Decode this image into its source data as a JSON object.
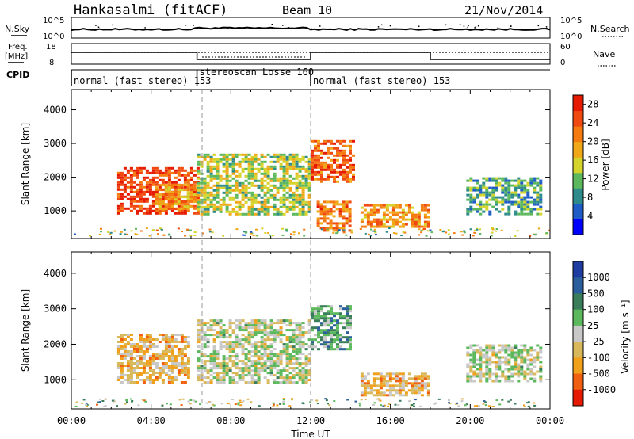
{
  "header": {
    "station": "Hankasalmi (fitACF)",
    "beam": "Beam 10",
    "date": "21/Nov/2014"
  },
  "ancillary": {
    "nsky_label": "N.Sky",
    "nsearch_label": "N.Search",
    "noise_ticks": [
      "10^5",
      "10^0"
    ],
    "freq_label_line1": "Freq.",
    "freq_label_line2": "[MHz]",
    "freq_ticks": [
      "18",
      "8"
    ],
    "nave_ticks": [
      "60",
      "0"
    ],
    "nave_label": "Nave",
    "cpid_label": "CPID",
    "cpid_segments": [
      {
        "label": "normal (fast stereo) 153",
        "start_h": 0,
        "end_h": 6.3
      },
      {
        "label": "stereoscan Losse 160",
        "start_h": 6.3,
        "end_h": 12
      },
      {
        "label": "normal (fast stereo) 153",
        "start_h": 12,
        "end_h": 24
      }
    ]
  },
  "axes": {
    "x_label": "Time UT",
    "x_ticks": [
      "00:00",
      "04:00",
      "08:00",
      "12:00",
      "16:00",
      "20:00",
      "00:00"
    ],
    "y_label": "Slant Range [km]",
    "y_ticks": [
      "1000",
      "2000",
      "3000",
      "4000"
    ]
  },
  "colorbars": {
    "power": {
      "label": "Power [dB]",
      "ticks": [
        "4",
        "8",
        "12",
        "16",
        "20",
        "24",
        "28"
      ],
      "colors": [
        "#0000ff",
        "#1f5cc8",
        "#2e8b8b",
        "#5cb85c",
        "#d4d42c",
        "#f0a818",
        "#f57a10",
        "#f04a10",
        "#e61a00"
      ]
    },
    "velocity": {
      "label": "Velocity [m s⁻¹]",
      "ticks": [
        "1000",
        "500",
        "100",
        "25",
        "-25",
        "-100",
        "-500",
        "-1000"
      ],
      "colors": [
        "#1f3ca0",
        "#2a5e9c",
        "#3a7d5a",
        "#5cb85c",
        "#c8c8c8",
        "#d8b85a",
        "#f0a01a",
        "#f06010",
        "#e61a00"
      ]
    }
  },
  "chart_data": [
    {
      "type": "heatmap",
      "title": "Power",
      "xlabel": "Time UT",
      "ylabel": "Slant Range [km]",
      "xlim": [
        0,
        24
      ],
      "ylim": [
        180,
        4600
      ],
      "zlabel": "Power [dB]",
      "zlim": [
        0,
        30
      ],
      "regions": [
        {
          "t0": 2.3,
          "t1": 6.4,
          "r0": 900,
          "r1": 2300,
          "z": 26
        },
        {
          "t0": 4.2,
          "t1": 6.2,
          "r0": 1000,
          "r1": 1800,
          "z": 20
        },
        {
          "t0": 6.3,
          "t1": 12.0,
          "r0": 900,
          "r1": 2700,
          "z": 14
        },
        {
          "t0": 12.0,
          "t1": 14.2,
          "r0": 1800,
          "r1": 3100,
          "z": 24
        },
        {
          "t0": 12.3,
          "t1": 14.0,
          "r0": 350,
          "r1": 1300,
          "z": 22
        },
        {
          "t0": 14.5,
          "t1": 18.0,
          "r0": 500,
          "r1": 1200,
          "z": 20
        },
        {
          "t0": 19.8,
          "t1": 23.6,
          "r0": 900,
          "r1": 2000,
          "z": 10
        }
      ]
    },
    {
      "type": "heatmap",
      "title": "Velocity",
      "xlabel": "Time UT",
      "ylabel": "Slant Range [km]",
      "xlim": [
        0,
        24
      ],
      "ylim": [
        180,
        4600
      ],
      "zlabel": "Velocity [m s⁻¹]",
      "zlim": [
        -1000,
        1000
      ],
      "regions": [
        {
          "t0": 2.3,
          "t1": 5.9,
          "r0": 900,
          "r1": 2300,
          "z": -300
        },
        {
          "t0": 6.3,
          "t1": 12.0,
          "r0": 900,
          "r1": 2700,
          "z": 0
        },
        {
          "t0": 12.0,
          "t1": 14.0,
          "r0": 1800,
          "r1": 3100,
          "z": 300
        },
        {
          "t0": 14.5,
          "t1": 18.0,
          "r0": 500,
          "r1": 1200,
          "z": -300
        },
        {
          "t0": 19.8,
          "t1": 23.6,
          "r0": 900,
          "r1": 2000,
          "z": 0
        }
      ]
    }
  ]
}
